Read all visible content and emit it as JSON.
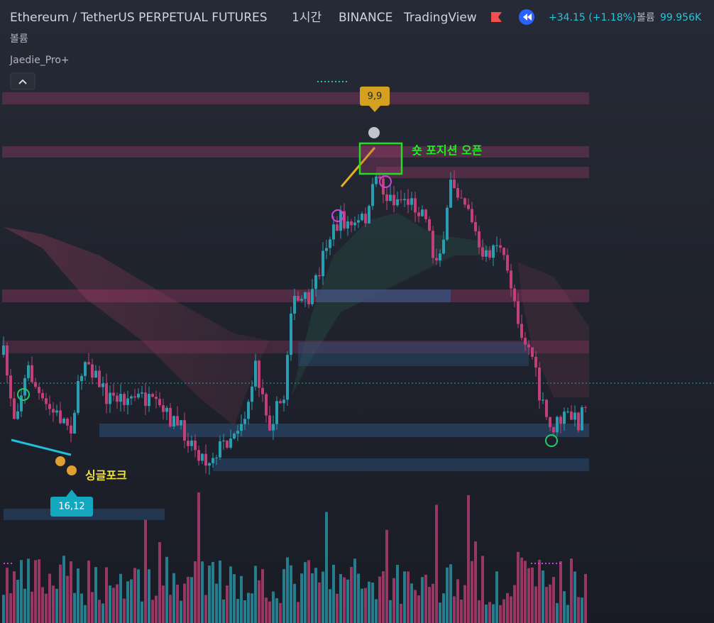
{
  "header": {
    "symbol": "Ethereum / TetherUS PERPETUAL FUTURES",
    "interval": "1시간",
    "exchange": "BINANCE",
    "source": "TradingView",
    "change": "+34.15 (+1.18%)",
    "volume_label": "볼륨",
    "volume_value": "99.956K"
  },
  "indicators": {
    "volume": "볼륨",
    "script": "Jaedie_Pro+"
  },
  "annotations": {
    "top_label": "9,9",
    "short_open": "숏 포지션 오픈",
    "single_fork": "싱글포크",
    "bottom_label": "16,12"
  }
}
